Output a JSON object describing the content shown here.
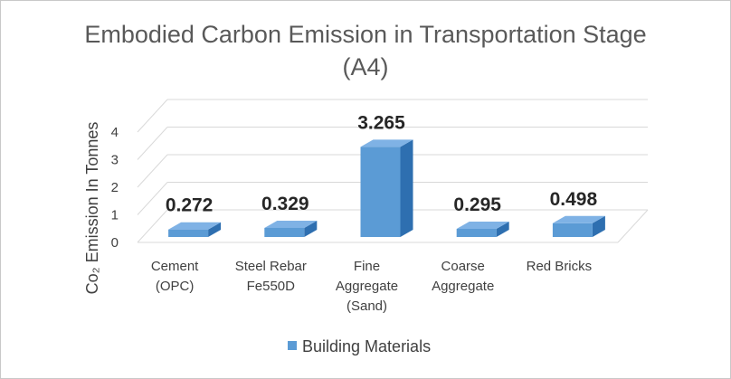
{
  "chart_data": {
    "type": "bar",
    "title_lines": [
      "Embodied Carbon Emission in Transportation Stage",
      "(A4)"
    ],
    "ylabel": "Co₂ Emission In Tonnes",
    "xlabel": "",
    "categories": [
      [
        "Cement",
        "(OPC)"
      ],
      [
        "Steel Rebar",
        "Fe550D"
      ],
      [
        "Fine",
        "Aggregate",
        "(Sand)"
      ],
      [
        "Coarse",
        "Aggregate"
      ],
      [
        "Red Bricks"
      ]
    ],
    "series": [
      {
        "name": "Building Materials",
        "values": [
          0.272,
          0.329,
          3.265,
          0.295,
          0.498
        ]
      }
    ],
    "value_labels": [
      "0.272",
      "0.329",
      "3.265",
      "0.295",
      "0.498"
    ],
    "yticks": [
      "0",
      "1",
      "2",
      "3",
      "4"
    ],
    "ylim": [
      0,
      4
    ],
    "grid": true,
    "style": "3d",
    "legend_position": "bottom",
    "colors": {
      "bar_front": "#5B9BD5",
      "bar_side": "#2E6FB0",
      "bar_top": "#7FB2E5",
      "grid": "#d9d9d9"
    }
  }
}
